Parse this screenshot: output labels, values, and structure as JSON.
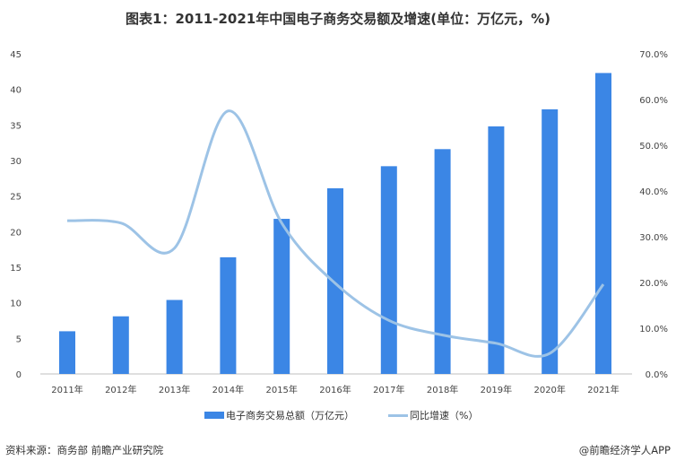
{
  "chart_data": {
    "type": "bar+line",
    "title": "图表1：2011-2021年中国电子商务交易额及增速(单位：万亿元，%)",
    "categories": [
      "2011年",
      "2012年",
      "2013年",
      "2014年",
      "2015年",
      "2016年",
      "2017年",
      "2018年",
      "2019年",
      "2020年",
      "2021年"
    ],
    "series": [
      {
        "name": "电子商务交易总额（万亿元）",
        "type": "bar",
        "axis": "left",
        "color": "#3b86e5",
        "values": [
          6.0,
          8.1,
          10.4,
          16.4,
          21.8,
          26.1,
          29.2,
          31.6,
          34.8,
          37.2,
          42.3
        ]
      },
      {
        "name": "同比增速（%）",
        "type": "line",
        "axis": "right",
        "color": "#9dc3e6",
        "values": [
          33.5,
          33.0,
          27.5,
          57.5,
          33.0,
          19.8,
          11.7,
          8.5,
          6.7,
          4.5,
          19.6
        ]
      }
    ],
    "y_left": {
      "range": [
        0,
        45
      ],
      "ticks": [
        "0",
        "5",
        "10",
        "15",
        "20",
        "25",
        "30",
        "35",
        "40",
        "45"
      ]
    },
    "y_right": {
      "range": [
        0,
        70
      ],
      "ticks": [
        "0.0%",
        "10.0%",
        "20.0%",
        "30.0%",
        "40.0%",
        "50.0%",
        "60.0%",
        "70.0%"
      ]
    },
    "grid": false,
    "legend": "bottom"
  },
  "footer": {
    "source": "资料来源：商务部 前瞻产业研究院",
    "brand": "@前瞻经济学人APP"
  }
}
